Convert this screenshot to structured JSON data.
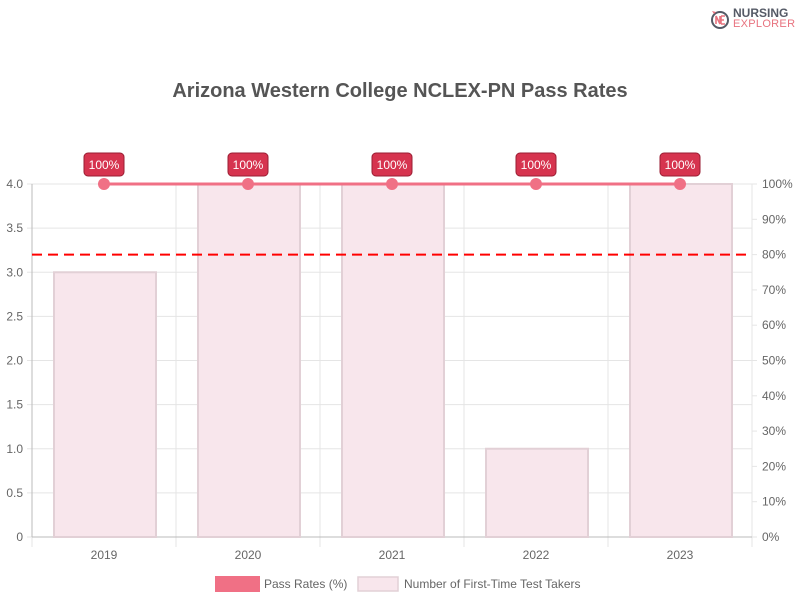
{
  "logo": {
    "line1": "NURSING",
    "line2": "EXPLORER"
  },
  "chart_data": {
    "type": "bar",
    "title": "Arizona Western College NCLEX-PN Pass Rates",
    "categories": [
      "2019",
      "2020",
      "2021",
      "2022",
      "2023"
    ],
    "series": [
      {
        "name": "Number of First-Time Test Takers",
        "type": "bar",
        "axis": "left",
        "values": [
          3,
          4,
          4,
          1,
          4
        ],
        "color": "#f8e6ec",
        "border": "#e2d0d6"
      },
      {
        "name": "Pass Rates (%)",
        "type": "line",
        "axis": "right",
        "values": [
          100,
          100,
          100,
          100,
          100
        ],
        "color": "#f07085",
        "labels": [
          "100%",
          "100%",
          "100%",
          "100%",
          "100%"
        ]
      }
    ],
    "y_left": {
      "range": [
        0,
        4
      ],
      "ticks": [
        "0",
        "0.5",
        "1.0",
        "1.5",
        "2.0",
        "2.5",
        "3.0",
        "3.5",
        "4.0"
      ]
    },
    "y_right": {
      "range": [
        0,
        100
      ],
      "ticks": [
        "0%",
        "10%",
        "20%",
        "30%",
        "40%",
        "50%",
        "60%",
        "70%",
        "80%",
        "90%",
        "100%"
      ]
    },
    "reference_line": {
      "value": 80,
      "axis": "right",
      "style": "dashed",
      "color": "#ff0000"
    },
    "label_color": "#d6344f",
    "grid": true,
    "legend": "bottom"
  }
}
